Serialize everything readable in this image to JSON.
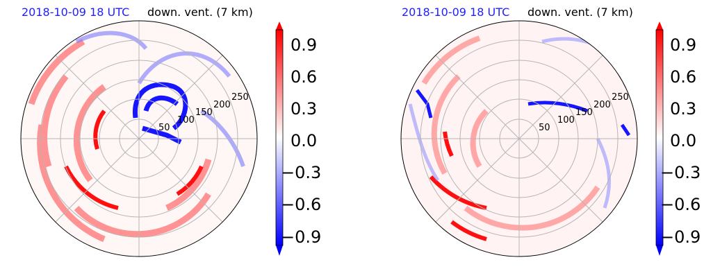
{
  "chart_data": [
    {
      "type": "heatmap",
      "projection": "polar",
      "timestamp": "2018-10-09 18 UTC",
      "title": "down. vent. (7 km)",
      "radial_ticks": [
        "50",
        "100",
        "150",
        "200",
        "250"
      ],
      "colorbar_ticks": [
        "0.9",
        "0.6",
        "0.3",
        "0.0",
        "−0.3",
        "−0.6",
        "−0.9"
      ],
      "colorbar_range": [
        -1.05,
        1.05
      ],
      "grid": true,
      "colormap": [
        "#0000ff",
        "#ffffff",
        "#ff0000"
      ]
    },
    {
      "type": "heatmap",
      "projection": "polar",
      "timestamp": "2018-10-09 18 UTC",
      "title": "down. vent. (7 km)",
      "radial_ticks": [
        "50",
        "100",
        "150",
        "200",
        "250"
      ],
      "colorbar_ticks": [
        "0.9",
        "0.6",
        "0.3",
        "0.0",
        "−0.3",
        "−0.6",
        "−0.9"
      ],
      "colorbar_range": [
        -1.05,
        1.05
      ],
      "grid": true,
      "colormap": [
        "#0000ff",
        "#ffffff",
        "#ff0000"
      ]
    }
  ]
}
